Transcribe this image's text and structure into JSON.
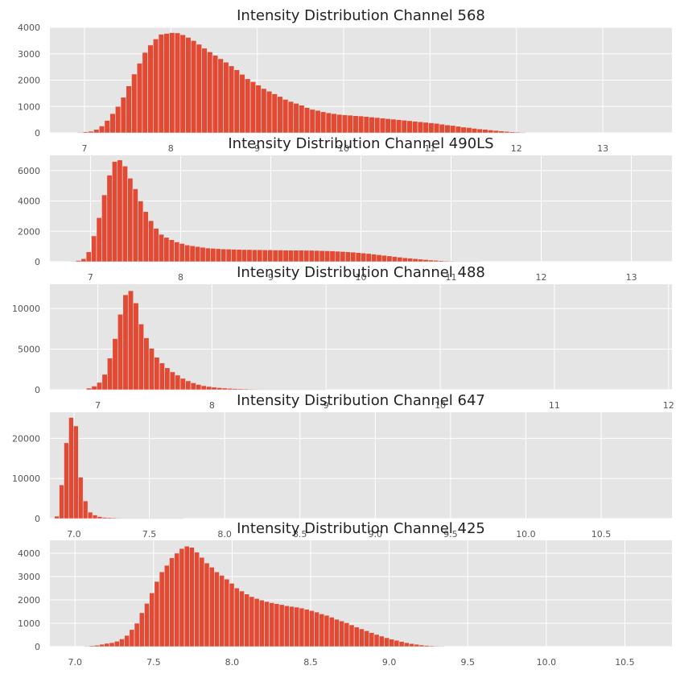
{
  "chart_data": [
    {
      "type": "bar",
      "title": "Intensity Distribution Channel 568",
      "xlabel": "",
      "ylabel": "",
      "xlim": [
        6.6,
        13.8
      ],
      "ylim": [
        0,
        4000
      ],
      "xticks": [
        7,
        8,
        9,
        10,
        11,
        12,
        13
      ],
      "yticks": [
        0,
        1000,
        2000,
        3000,
        4000
      ],
      "grid": true,
      "bin_start": 6.92,
      "bin_width": 0.0625,
      "values": [
        20,
        40,
        60,
        130,
        260,
        470,
        730,
        1000,
        1350,
        1780,
        2230,
        2640,
        3050,
        3330,
        3560,
        3740,
        3770,
        3800,
        3790,
        3720,
        3620,
        3500,
        3360,
        3210,
        3070,
        2940,
        2810,
        2680,
        2540,
        2390,
        2220,
        2050,
        1940,
        1810,
        1680,
        1580,
        1480,
        1380,
        1270,
        1190,
        1120,
        1050,
        960,
        890,
        850,
        800,
        760,
        730,
        700,
        680,
        670,
        650,
        640,
        620,
        600,
        580,
        560,
        540,
        520,
        500,
        480,
        460,
        440,
        420,
        400,
        380,
        360,
        330,
        300,
        280,
        250,
        220,
        200,
        170,
        150,
        130,
        110,
        90,
        70,
        55,
        40,
        30,
        20
      ]
    },
    {
      "type": "bar",
      "title": "Intensity Distribution Channel 490LS",
      "xlabel": "",
      "ylabel": "",
      "xlim": [
        6.55,
        13.45
      ],
      "ylim": [
        0,
        7000
      ],
      "xticks": [
        7,
        8,
        9,
        10,
        11,
        12,
        13
      ],
      "yticks": [
        0,
        2000,
        4000,
        6000
      ],
      "grid": true,
      "bin_start": 6.78,
      "bin_width": 0.0575,
      "values": [
        30,
        80,
        200,
        650,
        1700,
        2900,
        4400,
        5700,
        6600,
        6700,
        6300,
        5500,
        4800,
        4000,
        3300,
        2700,
        2200,
        1800,
        1600,
        1450,
        1300,
        1200,
        1100,
        1050,
        1000,
        950,
        900,
        880,
        860,
        840,
        830,
        820,
        810,
        800,
        800,
        790,
        790,
        780,
        780,
        770,
        770,
        760,
        760,
        760,
        760,
        750,
        750,
        740,
        730,
        720,
        710,
        690,
        670,
        650,
        630,
        600,
        570,
        540,
        500,
        460,
        420,
        380,
        340,
        300,
        260,
        230,
        200,
        170,
        140,
        110,
        90,
        70,
        50,
        40,
        30,
        20,
        15,
        10,
        5
      ]
    },
    {
      "type": "bar",
      "title": "Intensity Distribution Channel 488",
      "xlabel": "",
      "ylabel": "",
      "xlim": [
        6.58,
        12.03
      ],
      "ylim": [
        0,
        13000
      ],
      "xticks": [
        7,
        8,
        9,
        10,
        11,
        12
      ],
      "yticks": [
        0,
        5000,
        10000
      ],
      "grid": true,
      "bin_start": 6.9,
      "bin_width": 0.0457,
      "values": [
        200,
        450,
        900,
        1900,
        3900,
        6300,
        9300,
        11700,
        12200,
        10700,
        8100,
        6400,
        5100,
        4000,
        3300,
        2700,
        2200,
        1800,
        1400,
        1100,
        850,
        650,
        500,
        400,
        320,
        260,
        210,
        170,
        140,
        120,
        100,
        80,
        70,
        60,
        50,
        40,
        40,
        30,
        30,
        30,
        30,
        20,
        20,
        20,
        20,
        20
      ]
    },
    {
      "type": "bar",
      "title": "Intensity Distribution Channel 647",
      "xlabel": "",
      "ylabel": "",
      "xlim": [
        6.84,
        10.97
      ],
      "ylim": [
        0,
        26500
      ],
      "xticks": [
        7.0,
        7.5,
        8.0,
        8.5,
        9.0,
        9.5,
        10.0,
        10.5
      ],
      "xtick_labels": [
        "7.0",
        "7.5",
        "8.0",
        "8.5",
        "9.0",
        "9.5",
        "10.0",
        "10.5"
      ],
      "yticks": [
        0,
        10000,
        20000
      ],
      "grid": true,
      "bin_start": 6.87,
      "bin_width": 0.0317,
      "values": [
        600,
        8400,
        18900,
        25200,
        23100,
        10300,
        4400,
        1600,
        900,
        500,
        300,
        250,
        200,
        150,
        120,
        100,
        80,
        60,
        50,
        50,
        40,
        30,
        30,
        20,
        20,
        20,
        20
      ]
    },
    {
      "type": "bar",
      "title": "Intensity Distribution Channel 425",
      "xlabel": "",
      "ylabel": "",
      "xlim": [
        6.84,
        10.8
      ],
      "ylim": [
        0,
        4550
      ],
      "xticks": [
        7.0,
        7.5,
        8.0,
        8.5,
        9.0,
        9.5,
        10.0,
        10.5
      ],
      "xtick_labels": [
        "7.0",
        "7.5",
        "8.0",
        "8.5",
        "9.0",
        "9.5",
        "10.0",
        "10.5"
      ],
      "yticks": [
        0,
        1000,
        2000,
        3000,
        4000
      ],
      "grid": true,
      "bin_start": 7.06,
      "bin_width": 0.0318,
      "values": [
        20,
        40,
        60,
        100,
        140,
        170,
        230,
        330,
        480,
        730,
        1000,
        1450,
        1850,
        2300,
        2790,
        3200,
        3480,
        3800,
        4000,
        4200,
        4300,
        4250,
        4040,
        3820,
        3580,
        3400,
        3200,
        3050,
        2890,
        2710,
        2510,
        2380,
        2250,
        2140,
        2060,
        1990,
        1930,
        1880,
        1840,
        1800,
        1750,
        1720,
        1690,
        1650,
        1600,
        1540,
        1480,
        1400,
        1340,
        1260,
        1170,
        1100,
        1020,
        930,
        840,
        760,
        680,
        600,
        520,
        450,
        380,
        320,
        270,
        220,
        170,
        130,
        100,
        70,
        50,
        35,
        25,
        15
      ]
    }
  ]
}
